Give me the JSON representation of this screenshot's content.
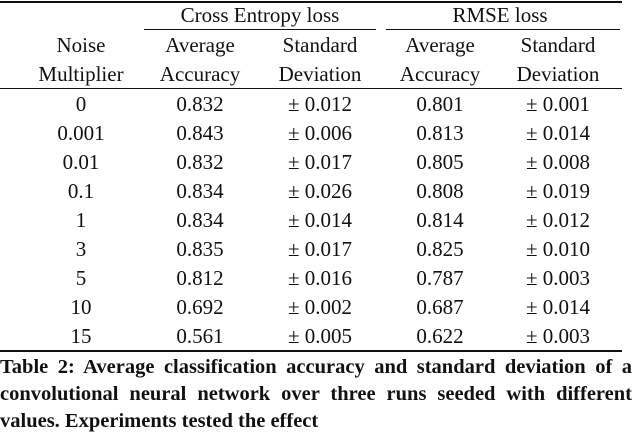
{
  "table": {
    "groups": [
      "Cross Entropy loss",
      "RMSE loss"
    ],
    "header_rows": [
      [
        "Noise",
        "Average",
        "Standard",
        "Average",
        "Standard"
      ],
      [
        "Multiplier",
        "Accuracy",
        "Deviation",
        "Accuracy",
        "Deviation"
      ]
    ],
    "rows": [
      [
        "0",
        "0.832",
        "± 0.012",
        "0.801",
        "± 0.001"
      ],
      [
        "0.001",
        "0.843",
        "± 0.006",
        "0.813",
        "± 0.014"
      ],
      [
        "0.01",
        "0.832",
        "± 0.017",
        "0.805",
        "± 0.008"
      ],
      [
        "0.1",
        "0.834",
        "± 0.026",
        "0.808",
        "± 0.019"
      ],
      [
        "1",
        "0.834",
        "± 0.014",
        "0.814",
        "± 0.012"
      ],
      [
        "3",
        "0.835",
        "± 0.017",
        "0.825",
        "± 0.010"
      ],
      [
        "5",
        "0.812",
        "± 0.016",
        "0.787",
        "± 0.003"
      ],
      [
        "10",
        "0.692",
        "± 0.002",
        "0.687",
        "± 0.014"
      ],
      [
        "15",
        "0.561",
        "± 0.005",
        "0.622",
        "± 0.003"
      ]
    ]
  },
  "caption": "Table 2: Average classification accuracy and standard deviation of a convolutional neural network over three runs seeded with different values. Experiments tested the effect"
}
